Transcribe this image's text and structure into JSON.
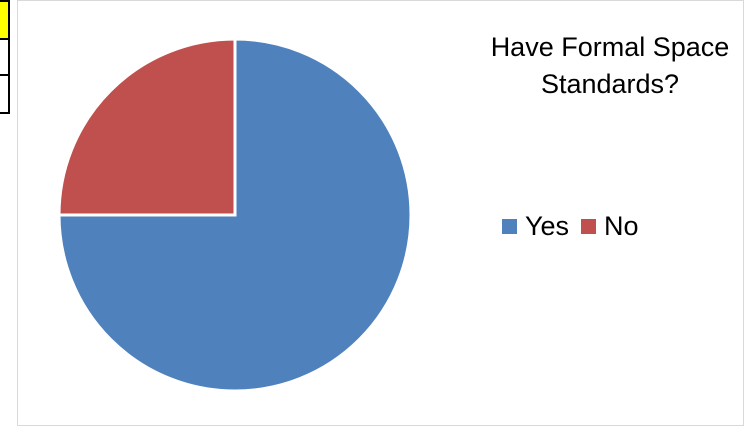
{
  "chart_data": {
    "type": "pie",
    "title": "Have Formal Space Standards?",
    "categories": [
      "Yes",
      "No"
    ],
    "values": [
      75,
      25
    ],
    "colors": [
      "#4f81bd",
      "#c0504d"
    ],
    "legend_position": "right"
  }
}
